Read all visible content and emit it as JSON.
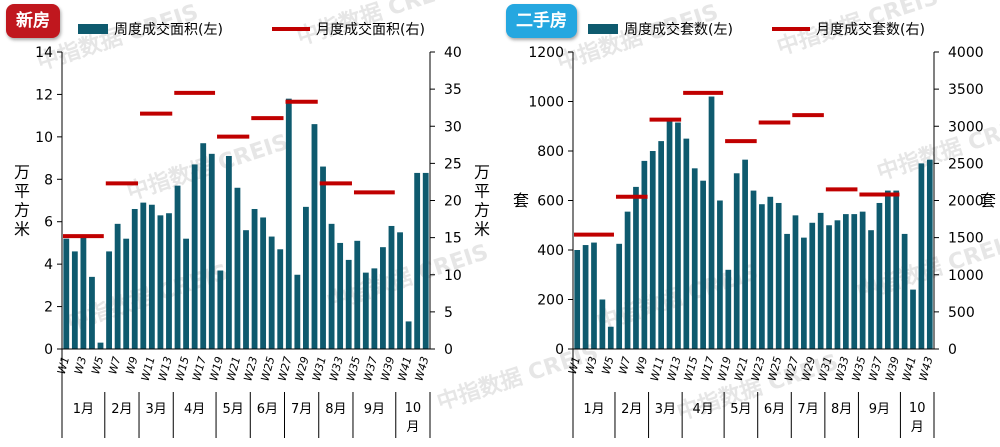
{
  "badges": {
    "left": "新房",
    "right": "二手房"
  },
  "watermark": "中指数据 CREIS",
  "colors": {
    "bar": "#0e5a6e",
    "line": "#c00000",
    "axis": "#000000"
  },
  "chart_data": [
    {
      "type": "bar",
      "badge": "新房",
      "legend": {
        "bar": "周度成交面积(左)",
        "line": "月度成交面积(右)"
      },
      "y_left_label": "万平方米",
      "y_right_label": "万平方米",
      "ylim_left": [
        0,
        14
      ],
      "yticks_left": [
        0,
        2,
        4,
        6,
        8,
        10,
        12,
        14
      ],
      "ylim_right": [
        0,
        40
      ],
      "yticks_right": [
        0,
        5,
        10,
        15,
        20,
        25,
        30,
        35,
        40
      ],
      "x_tick_labels": [
        "W1",
        "W3",
        "W5",
        "W7",
        "W9",
        "W11",
        "W13",
        "W15",
        "W17",
        "W19",
        "W21",
        "W23",
        "W25",
        "W27",
        "W29",
        "W31",
        "W33",
        "W35",
        "W37",
        "W39",
        "W41",
        "W43"
      ],
      "month_labels": [
        "1月",
        "2月",
        "3月",
        "4月",
        "5月",
        "6月",
        "7月",
        "8月",
        "9月",
        "10月"
      ],
      "month_week_counts": [
        5,
        4,
        4,
        5,
        4,
        4,
        4,
        4,
        5,
        4
      ],
      "weekly": [
        5.2,
        4.6,
        5.3,
        3.4,
        0.3,
        4.6,
        5.9,
        5.2,
        6.6,
        6.9,
        6.8,
        6.3,
        6.4,
        7.7,
        5.2,
        8.7,
        9.7,
        9.2,
        3.7,
        9.1,
        7.6,
        5.6,
        6.6,
        6.2,
        5.3,
        4.7,
        11.8,
        3.5,
        6.7,
        10.6,
        8.6,
        5.9,
        5.0,
        4.2,
        5.1,
        3.6,
        3.8,
        4.8,
        5.8,
        5.5,
        1.3,
        8.3,
        8.3
      ],
      "monthly": [
        15.2,
        22.3,
        31.7,
        34.5,
        28.6,
        31.1,
        33.3,
        22.3,
        21.1,
        null
      ]
    },
    {
      "type": "bar",
      "badge": "二手房",
      "legend": {
        "bar": "周度成交套数(左)",
        "line": "月度成交套数(右)"
      },
      "y_left_label": "套",
      "y_right_label": "套",
      "ylim_left": [
        0,
        1200
      ],
      "yticks_left": [
        0,
        200,
        400,
        600,
        800,
        1000,
        1200
      ],
      "ylim_right": [
        0,
        4000
      ],
      "yticks_right": [
        0,
        500,
        1000,
        1500,
        2000,
        2500,
        3000,
        3500,
        4000
      ],
      "x_tick_labels": [
        "W1",
        "W3",
        "W5",
        "W7",
        "W9",
        "W11",
        "W13",
        "W15",
        "W17",
        "W19",
        "W21",
        "W23",
        "W25",
        "W27",
        "W29",
        "W31",
        "W33",
        "W35",
        "W37",
        "W39",
        "W41",
        "W43"
      ],
      "month_labels": [
        "1月",
        "2月",
        "3月",
        "4月",
        "5月",
        "6月",
        "7月",
        "8月",
        "9月",
        "10月"
      ],
      "month_week_counts": [
        5,
        4,
        4,
        5,
        4,
        4,
        4,
        4,
        5,
        4
      ],
      "weekly": [
        400,
        420,
        430,
        200,
        90,
        425,
        555,
        655,
        760,
        800,
        840,
        930,
        915,
        850,
        730,
        680,
        1020,
        600,
        320,
        710,
        765,
        640,
        585,
        615,
        590,
        465,
        540,
        450,
        510,
        550,
        500,
        520,
        545,
        545,
        555,
        480,
        590,
        640,
        640,
        465,
        240,
        750,
        765
      ],
      "monthly": [
        1540,
        2050,
        3090,
        3450,
        2800,
        3050,
        3150,
        2150,
        2080,
        null
      ]
    }
  ]
}
